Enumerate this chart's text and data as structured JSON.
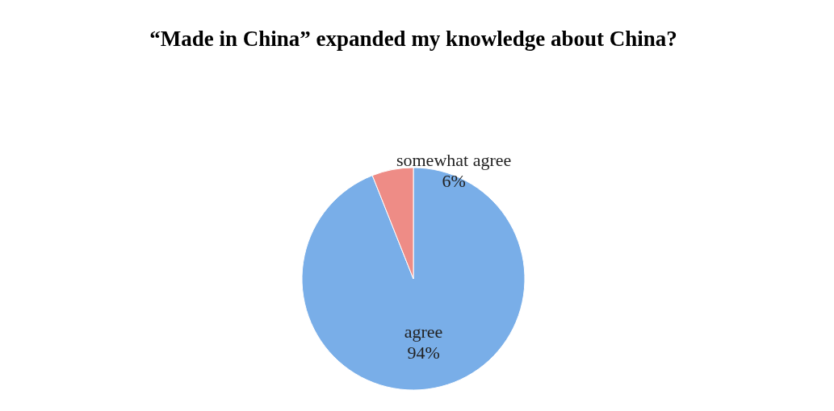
{
  "chart_data": {
    "type": "pie",
    "title": "“Made in China” expanded my knowledge about China?",
    "categories": [
      "agree",
      "somewhat agree"
    ],
    "values": [
      94,
      6
    ],
    "value_labels": [
      "94%",
      "6%"
    ],
    "colors": [
      "#79aee8",
      "#ee8c86"
    ],
    "legend": false
  }
}
